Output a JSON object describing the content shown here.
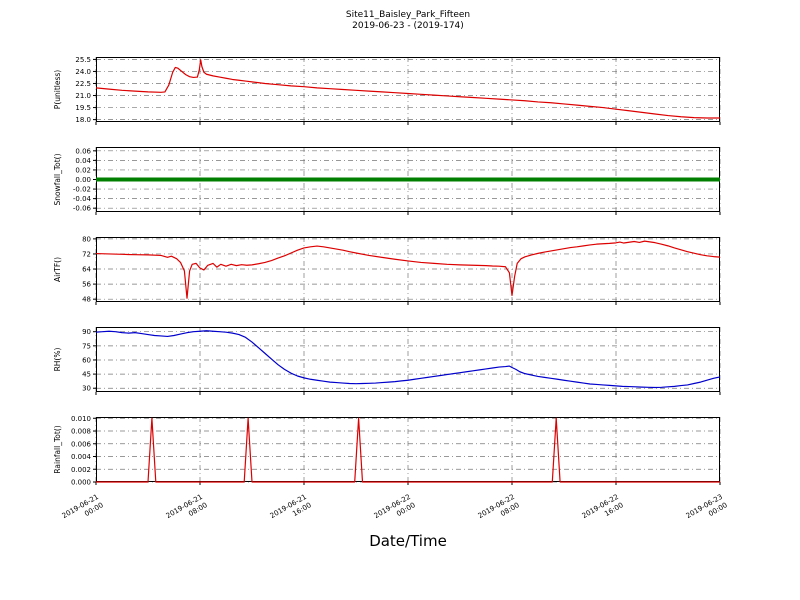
{
  "figure": {
    "title_line1": "Site11_Baisley_Park_Fifteen",
    "title_line2": "2019-06-23 - (2019-174)",
    "xlabel": "Date/Time"
  },
  "x_axis": {
    "range": [
      0,
      48
    ],
    "ticks": [
      0,
      8,
      16,
      24,
      32,
      40,
      48
    ],
    "tick_labels": [
      [
        "2019-06-21",
        "00:00"
      ],
      [
        "2019-06-21",
        "08:00"
      ],
      [
        "2019-06-21",
        "16:00"
      ],
      [
        "2019-06-22",
        "00:00"
      ],
      [
        "2019-06-22",
        "08:00"
      ],
      [
        "2019-06-22",
        "16:00"
      ],
      [
        "2019-06-23",
        "00:00"
      ]
    ]
  },
  "chart_data": [
    {
      "name": "P",
      "type": "line",
      "ylabel": "P(unitless)",
      "color": "#dd0000",
      "linewidth": 1.2,
      "ylim": [
        17.7,
        25.8
      ],
      "yticks": [
        18.0,
        19.5,
        21.0,
        22.5,
        24.0,
        25.5
      ],
      "ytick_labels": [
        "18.0",
        "19.5",
        "21.0",
        "22.5",
        "24.0",
        "25.5"
      ],
      "x": [
        0,
        1,
        2,
        3,
        4,
        5,
        5.3,
        5.6,
        5.9,
        6.1,
        6.3,
        6.6,
        6.9,
        7.2,
        7.5,
        7.8,
        7.95,
        8.05,
        8.15,
        8.3,
        8.5,
        9,
        9.5,
        10,
        10.5,
        11,
        11.5,
        12,
        13,
        14,
        15,
        16,
        17,
        18,
        19,
        20,
        21,
        22,
        23,
        24,
        25,
        26,
        27,
        28,
        29,
        30,
        31,
        32,
        33,
        34,
        35,
        36,
        37,
        38,
        39,
        40,
        41,
        42,
        43,
        44,
        45,
        46,
        47,
        48
      ],
      "y": [
        21.95,
        21.8,
        21.65,
        21.55,
        21.45,
        21.4,
        21.45,
        22.3,
        23.9,
        24.5,
        24.4,
        24.0,
        23.6,
        23.35,
        23.25,
        23.3,
        24.2,
        25.45,
        24.6,
        23.9,
        23.65,
        23.45,
        23.3,
        23.15,
        23.0,
        22.9,
        22.8,
        22.7,
        22.5,
        22.35,
        22.2,
        22.1,
        21.95,
        21.85,
        21.75,
        21.65,
        21.55,
        21.45,
        21.35,
        21.25,
        21.15,
        21.05,
        20.95,
        20.85,
        20.75,
        20.65,
        20.55,
        20.45,
        20.35,
        20.2,
        20.1,
        19.95,
        19.8,
        19.65,
        19.5,
        19.3,
        19.1,
        18.9,
        18.7,
        18.5,
        18.35,
        18.25,
        18.2,
        18.2
      ]
    },
    {
      "name": "Snowfall_Tot",
      "type": "line",
      "ylabel": "Snowfall_Tot()",
      "color": "#007f00",
      "linewidth": 4,
      "ylim": [
        -0.068,
        0.068
      ],
      "yticks": [
        -0.06,
        -0.04,
        -0.02,
        0.0,
        0.02,
        0.04,
        0.06
      ],
      "ytick_labels": [
        "-0.06",
        "-0.04",
        "-0.02",
        "0.00",
        "0.02",
        "0.04",
        "0.06"
      ],
      "x": [
        0,
        48
      ],
      "y": [
        0.0,
        0.0
      ]
    },
    {
      "name": "AirTF",
      "type": "line",
      "ylabel": "AirTF()",
      "color": "#dd0000",
      "linewidth": 1.2,
      "ylim": [
        46.5,
        81
      ],
      "yticks": [
        48,
        56,
        64,
        72,
        80
      ],
      "ytick_labels": [
        "48",
        "56",
        "64",
        "72",
        "80"
      ],
      "x": [
        0,
        1,
        2,
        3,
        4,
        5,
        5.5,
        5.8,
        6.2,
        6.5,
        6.8,
        7.0,
        7.2,
        7.4,
        7.7,
        8.0,
        8.3,
        8.6,
        9.0,
        9.3,
        9.6,
        10,
        10.4,
        10.8,
        11.2,
        11.6,
        12,
        12.5,
        13,
        13.5,
        14,
        14.5,
        15,
        15.5,
        16,
        16.5,
        17,
        17.5,
        18,
        18.5,
        19,
        19.5,
        20,
        21,
        22,
        23,
        24,
        25,
        26,
        27,
        28,
        29,
        30,
        30.5,
        31,
        31.5,
        31.8,
        32.0,
        32.2,
        32.4,
        32.7,
        33,
        33.5,
        34,
        34.5,
        35,
        35.5,
        36,
        36.5,
        37,
        37.5,
        38,
        38.5,
        39,
        39.5,
        40,
        40.3,
        40.6,
        41,
        41.4,
        41.8,
        42.2,
        42.6,
        43,
        43.5,
        44,
        44.5,
        45,
        45.5,
        46,
        46.5,
        47,
        47.5,
        48
      ],
      "y": [
        72.2,
        72.0,
        71.8,
        71.6,
        71.5,
        71.2,
        70.2,
        70.8,
        69.5,
        67.5,
        63.0,
        48.5,
        63.0,
        66.5,
        67.0,
        64.5,
        63.5,
        66.0,
        67.0,
        65.0,
        66.5,
        65.5,
        66.5,
        65.8,
        66.3,
        66.0,
        66.2,
        66.8,
        67.5,
        68.5,
        69.8,
        71.0,
        72.5,
        74.0,
        75.2,
        75.8,
        76.2,
        75.8,
        75.2,
        74.6,
        74.0,
        73.2,
        72.5,
        71.2,
        70.2,
        69.2,
        68.3,
        67.5,
        67.0,
        66.5,
        66.2,
        66.0,
        65.8,
        65.6,
        65.5,
        65.2,
        62.0,
        50.0,
        60.0,
        67.0,
        69.5,
        70.5,
        71.5,
        72.3,
        73.0,
        73.6,
        74.2,
        74.8,
        75.4,
        75.8,
        76.3,
        76.8,
        77.2,
        77.4,
        77.6,
        77.9,
        78.3,
        77.8,
        78.2,
        78.6,
        78.1,
        78.8,
        78.4,
        78.0,
        77.2,
        76.3,
        75.2,
        74.2,
        73.2,
        72.4,
        71.6,
        71.0,
        70.6,
        70.3
      ]
    },
    {
      "name": "RH",
      "type": "line",
      "ylabel": "RH(%)",
      "color": "#0000cc",
      "linewidth": 1.2,
      "ylim": [
        26,
        95
      ],
      "yticks": [
        30,
        45,
        60,
        75,
        90
      ],
      "ytick_labels": [
        "30",
        "45",
        "60",
        "75",
        "90"
      ],
      "x": [
        0,
        0.5,
        1,
        1.5,
        2,
        2.5,
        3,
        3.5,
        4,
        4.5,
        5,
        5.5,
        6,
        6.5,
        7,
        7.5,
        8,
        8.5,
        9,
        9.5,
        10,
        10.5,
        11,
        11.5,
        12,
        12.5,
        13,
        13.5,
        14,
        14.5,
        15,
        15.5,
        16,
        16.5,
        17,
        17.5,
        18,
        18.5,
        19,
        19.5,
        20,
        20.5,
        21,
        21.5,
        22,
        22.5,
        23,
        23.5,
        24,
        24.5,
        25,
        25.5,
        26,
        26.5,
        27,
        27.5,
        28,
        28.5,
        29,
        29.5,
        30,
        30.5,
        31,
        31.5,
        31.8,
        32.0,
        32.3,
        32.6,
        33,
        33.5,
        34,
        34.5,
        35,
        35.5,
        36,
        36.5,
        37,
        37.5,
        38,
        38.5,
        39,
        39.5,
        40,
        40.5,
        41,
        41.5,
        42,
        42.5,
        43,
        43.5,
        44,
        44.5,
        45,
        45.5,
        46,
        46.5,
        47,
        47.5,
        48
      ],
      "y": [
        89.5,
        90.0,
        90.5,
        90.0,
        89.0,
        88.5,
        89.0,
        88.0,
        87.0,
        86.0,
        85.5,
        85.0,
        86.0,
        87.5,
        89.0,
        90.0,
        90.5,
        91.0,
        90.5,
        90.0,
        89.5,
        88.5,
        87.0,
        84.0,
        79.0,
        73.0,
        67.0,
        61.0,
        55.0,
        50.0,
        46.0,
        43.0,
        41.0,
        39.5,
        38.5,
        37.5,
        36.5,
        36.0,
        35.5,
        35.0,
        34.8,
        35.0,
        35.2,
        35.5,
        36.0,
        36.5,
        37.0,
        37.8,
        38.5,
        39.5,
        40.5,
        41.5,
        42.5,
        43.5,
        44.5,
        45.5,
        46.5,
        47.5,
        48.5,
        49.5,
        50.5,
        51.5,
        52.5,
        53.0,
        53.5,
        52.0,
        50.0,
        47.5,
        45.5,
        44.0,
        42.5,
        41.5,
        40.5,
        39.5,
        38.5,
        37.5,
        36.5,
        35.5,
        34.5,
        34.0,
        33.5,
        33.0,
        32.5,
        32.0,
        31.8,
        31.5,
        31.2,
        31.0,
        30.8,
        31.0,
        31.5,
        32.0,
        32.8,
        33.5,
        35.0,
        36.5,
        38.5,
        40.5,
        42.0
      ]
    },
    {
      "name": "Rainfall_Tot",
      "type": "line",
      "ylabel": "Rainfall_Tot()",
      "color": "#dd0000",
      "linewidth": 1.2,
      "ylim": [
        0,
        0.0102
      ],
      "yticks": [
        0.0,
        0.002,
        0.004,
        0.006,
        0.008,
        0.01
      ],
      "ytick_labels": [
        "0.000",
        "0.002",
        "0.004",
        "0.006",
        "0.008",
        "0.010"
      ],
      "x": [
        0,
        4.0,
        4.3,
        4.6,
        11.4,
        11.7,
        12.0,
        19.9,
        20.2,
        20.5,
        35.1,
        35.4,
        35.7,
        48
      ],
      "y": [
        0,
        0,
        0.01,
        0,
        0,
        0.01,
        0,
        0,
        0.01,
        0,
        0,
        0.01,
        0,
        0
      ]
    }
  ]
}
